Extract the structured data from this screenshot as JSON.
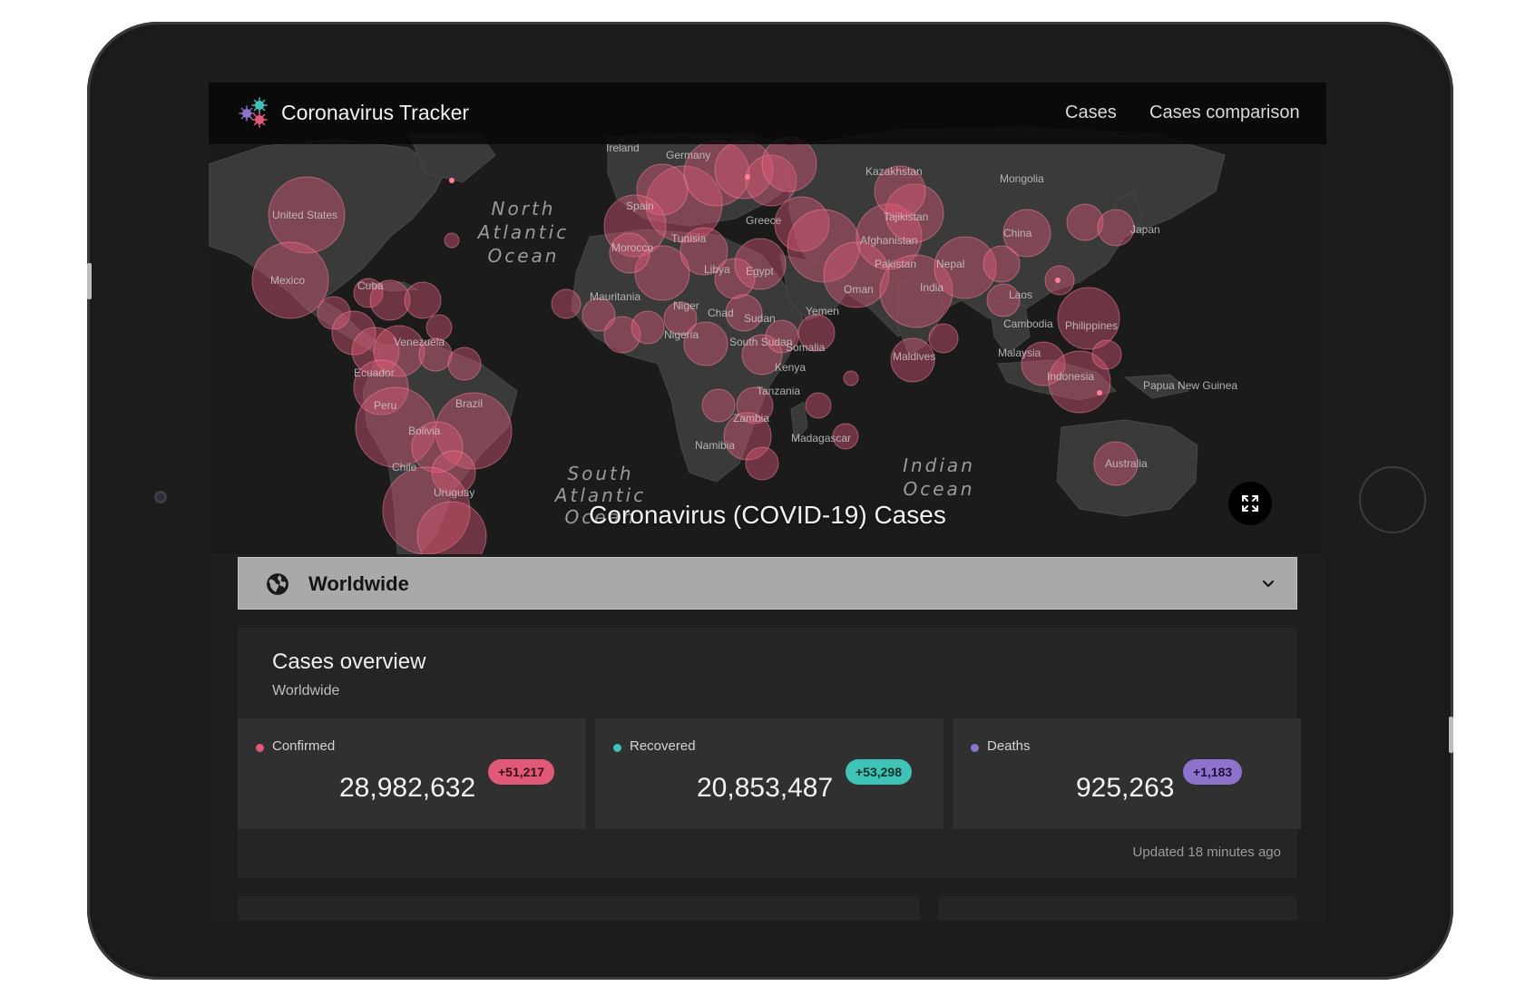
{
  "nav": {
    "title": "Coronavirus Tracker",
    "links": [
      "Cases",
      "Cases comparison"
    ]
  },
  "map": {
    "title": "Coronavirus (COVID-19) Cases",
    "ocean_labels": [
      [
        "North",
        "Atlantic",
        "Ocean"
      ],
      [
        "South",
        "Atlantic",
        "Ocean"
      ],
      [
        "Indian",
        "Ocean"
      ]
    ],
    "country_labels": [
      "United States",
      "Mexico",
      "Cuba",
      "Venezuela",
      "Ecuador",
      "Peru",
      "Brazil",
      "Bolivia",
      "Chile",
      "Uruguay",
      "Ireland",
      "Germany",
      "Spain",
      "Greece",
      "Morocco",
      "Tunisia",
      "Libya",
      "Egypt",
      "Mauritania",
      "Niger",
      "Chad",
      "Sudan",
      "Nigeria",
      "South Sudan",
      "Somalia",
      "Kenya",
      "Tanzania",
      "Zambia",
      "Namibia",
      "Madagascar",
      "Yemen",
      "Oman",
      "Kazakhstan",
      "Tajikistan",
      "Afghanistan",
      "Pakistan",
      "Nepal",
      "India",
      "Maldives",
      "Mongolia",
      "China",
      "Japan",
      "Laos",
      "Cambodia",
      "Philippines",
      "Malaysia",
      "Indonesia",
      "Papua New Guinea",
      "Australia"
    ],
    "bubble_color": "#e05a78"
  },
  "region": {
    "selected": "Worldwide"
  },
  "overview": {
    "title": "Cases overview",
    "subtitle": "Worldwide",
    "updated": "Updated 18 minutes ago",
    "stats": [
      {
        "label": "Confirmed",
        "value": "28,982,632",
        "delta": "+51,217",
        "color": "#e05a78"
      },
      {
        "label": "Recovered",
        "value": "20,853,487",
        "delta": "+53,298",
        "color": "#3fc3b7"
      },
      {
        "label": "Deaths",
        "value": "925,263",
        "delta": "+1,183",
        "color": "#8d73cc"
      }
    ]
  },
  "icons": {
    "logo": "virus-cluster-icon",
    "fullscreen": "fullscreen-icon",
    "region": "globe-icon",
    "dropdown": "chevron-down-icon"
  }
}
